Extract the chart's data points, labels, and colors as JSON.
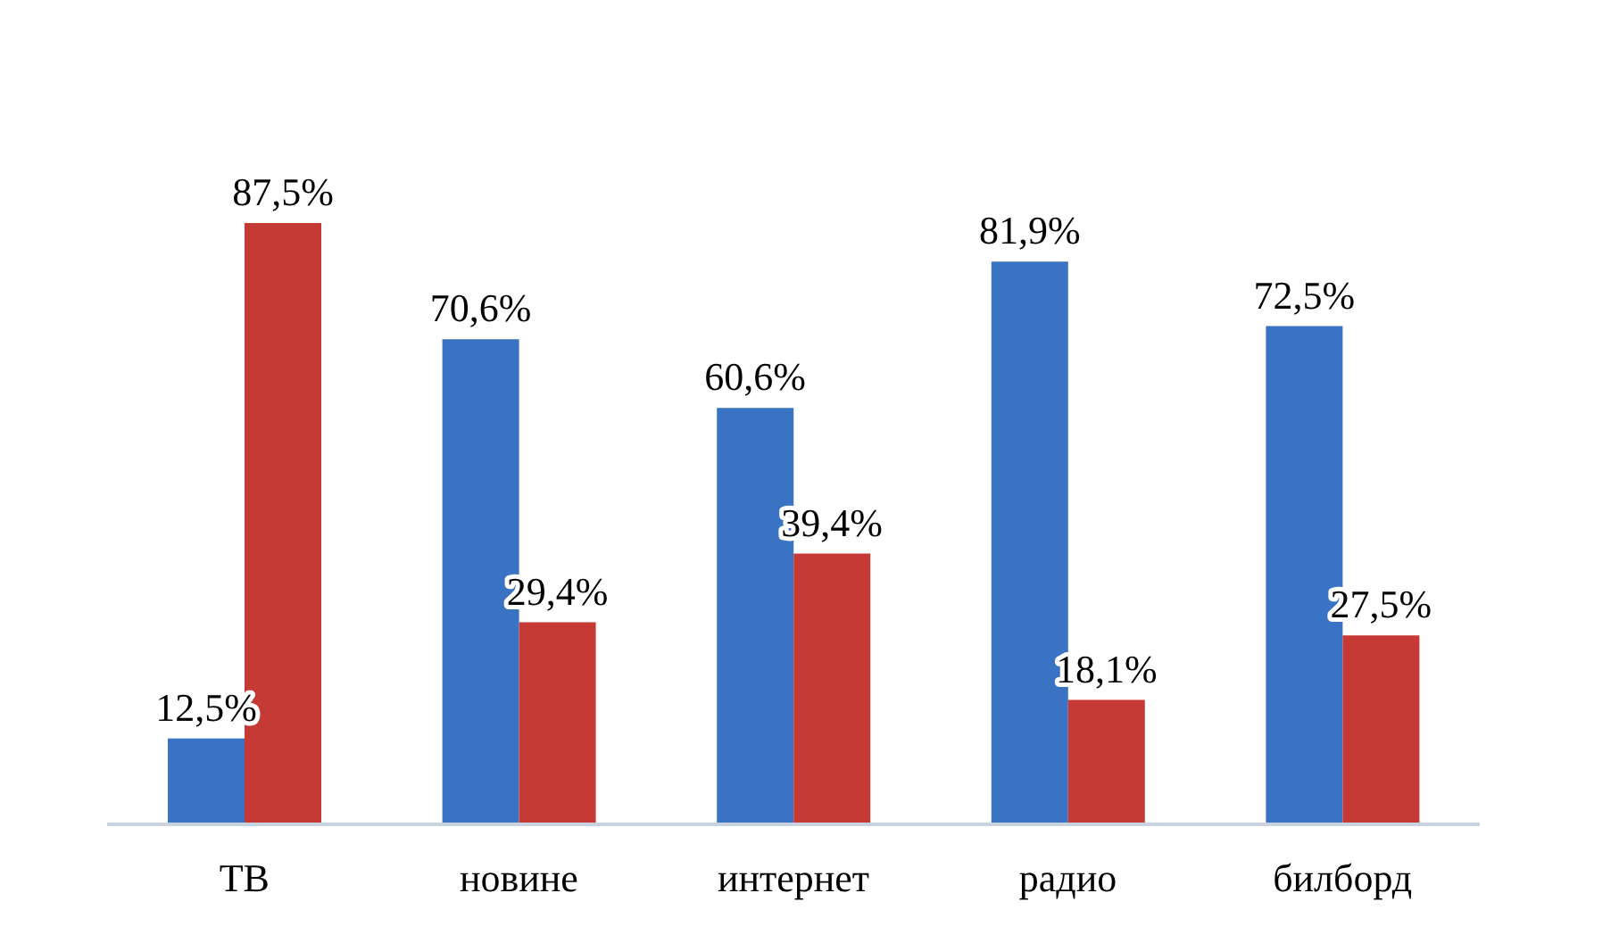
{
  "chart_data": {
    "type": "bar",
    "categories": [
      "ТВ",
      "новине",
      "интернет",
      "радио",
      "билборд"
    ],
    "series": [
      {
        "color": "#3a73c4",
        "values": [
          12.5,
          70.6,
          60.6,
          81.9,
          72.5
        ],
        "value_labels": [
          "12,5%",
          "70,6%",
          "60,6%",
          "81,9%",
          "72,5%"
        ]
      },
      {
        "color": "#c63a35",
        "values": [
          87.5,
          29.4,
          39.4,
          18.1,
          27.5
        ],
        "value_labels": [
          "87,5%",
          "29,4%",
          "39,4%",
          "18,1%",
          "27,5%"
        ]
      }
    ],
    "tick_labels": "x",
    "grid": false,
    "legend": false
  }
}
